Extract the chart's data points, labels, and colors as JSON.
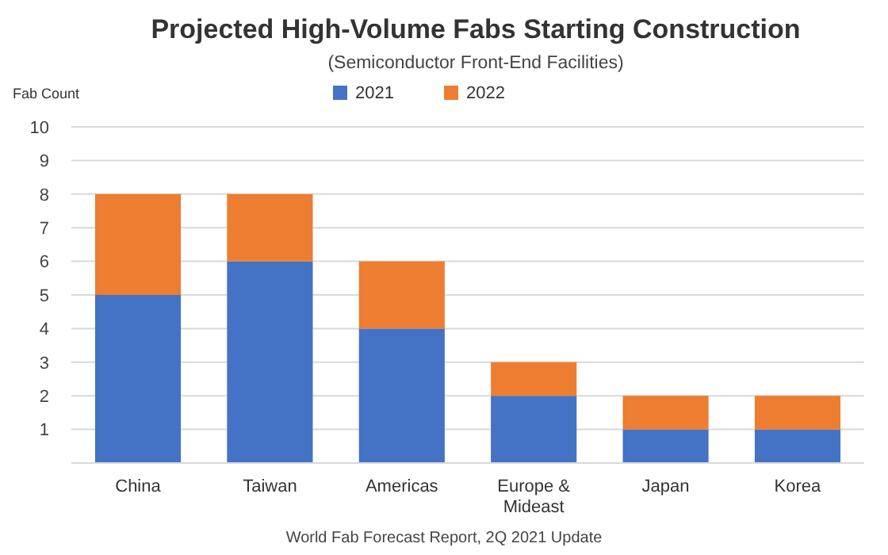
{
  "chart_data": {
    "type": "bar",
    "title": "Projected High-Volume Fabs Starting Construction",
    "subtitle": "(Semiconductor Front-End Facilities)",
    "ylabel": "Fab Count",
    "categories": [
      "China",
      "Taiwan",
      "Americas",
      "Europe & Mideast",
      "Japan",
      "Korea"
    ],
    "stacked": true,
    "series": [
      {
        "name": "2021",
        "color": "#4472c4",
        "values": [
          5,
          6,
          4,
          2,
          1,
          1
        ]
      },
      {
        "name": "2022",
        "color": "#ed7d31",
        "values": [
          3,
          2,
          2,
          1,
          1,
          1
        ]
      }
    ],
    "ylim": [
      0,
      10
    ],
    "yticks": [
      1,
      2,
      3,
      4,
      5,
      6,
      7,
      8,
      9,
      10
    ],
    "grid": "y",
    "legend": "top",
    "annotations": [
      "World Fab Forecast Report, 2Q 2021 Update"
    ]
  }
}
